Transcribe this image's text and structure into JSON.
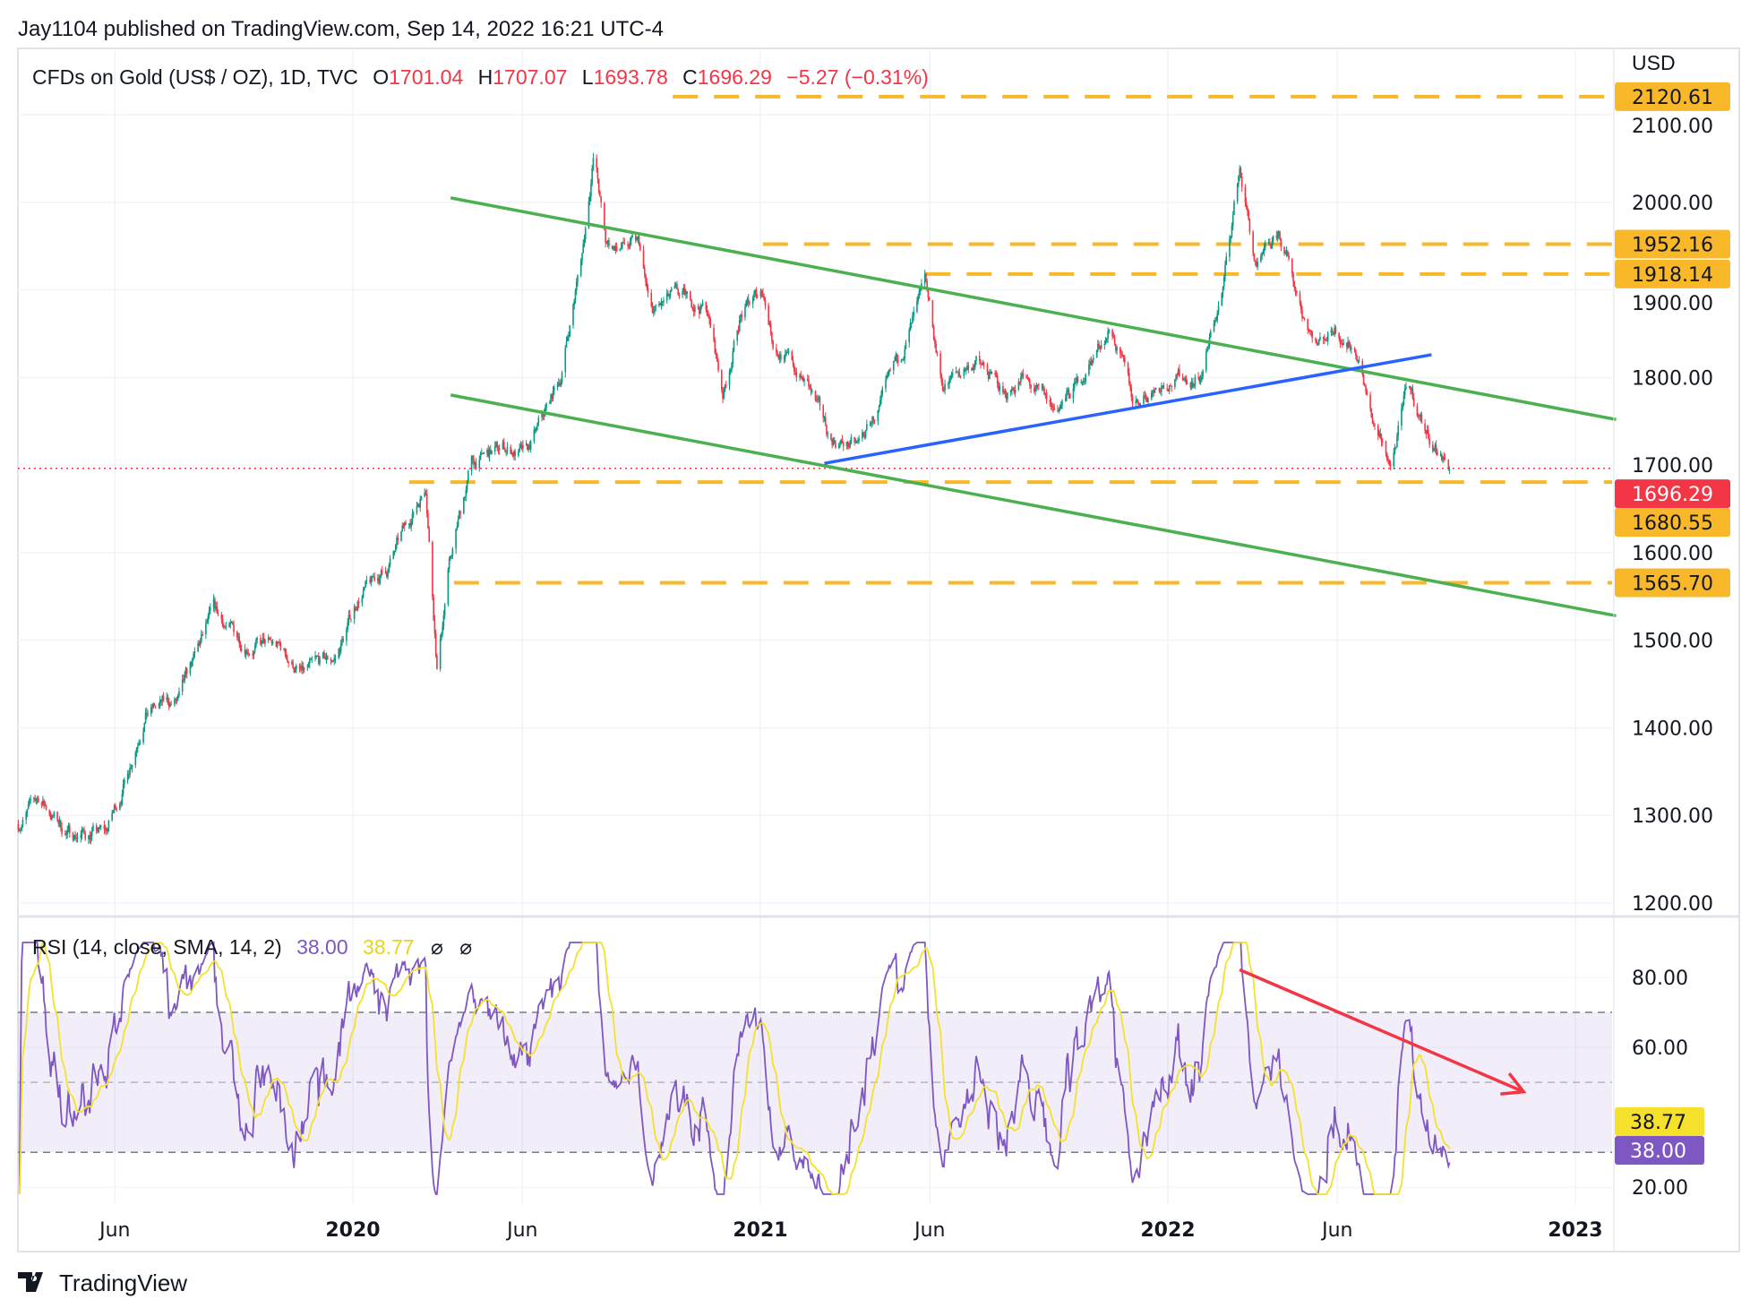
{
  "header": {
    "published": "Jay1104 published on TradingView.com, Sep 14, 2022 16:21 UTC-4"
  },
  "legend": {
    "symbol": "CFDs on Gold (US$ / OZ), 1D, TVC",
    "o_label": "O",
    "o": "1701.04",
    "h_label": "H",
    "h": "1707.07",
    "l_label": "L",
    "l": "1693.78",
    "c_label": "C",
    "c": "1696.29",
    "change": "−5.27 (−0.31%)"
  },
  "rsi_legend": {
    "title": "RSI (14, close, SMA, 14, 2)",
    "rsi": "38.00",
    "sma": "38.77",
    "flag1": "⌀",
    "flag2": "⌀"
  },
  "currency": "USD",
  "footer": {
    "brand": "TradingView"
  },
  "colors": {
    "up": "#089981",
    "down": "#f23645",
    "level": "#f9b829",
    "channel": "#4caf50",
    "trend": "#2962ff",
    "rsi": "#7e57c2",
    "rsi_sma": "#f5e12b",
    "arrow": "#f23645"
  },
  "chart_data": {
    "type": "candlestick",
    "title": "CFDs on Gold (US$ / OZ), 1D, TVC",
    "ylim": [
      1200,
      2130
    ],
    "y_ticks": [
      "2100.00",
      "2000.00",
      "1900.00",
      "1800.00",
      "1700.00",
      "1600.00",
      "1500.00",
      "1400.00",
      "1300.00",
      "1200.00"
    ],
    "x_ticks": [
      {
        "t": 2019.416,
        "label": "Jun",
        "bold": false
      },
      {
        "t": 2020.0,
        "label": "2020",
        "bold": true
      },
      {
        "t": 2020.416,
        "label": "Jun",
        "bold": false
      },
      {
        "t": 2021.0,
        "label": "2021",
        "bold": true
      },
      {
        "t": 2021.416,
        "label": "Jun",
        "bold": false
      },
      {
        "t": 2022.0,
        "label": "2022",
        "bold": true
      },
      {
        "t": 2022.416,
        "label": "Jun",
        "bold": false
      },
      {
        "t": 2023.0,
        "label": "2023",
        "bold": true
      }
    ],
    "price_path_anchors": [
      [
        2019.179,
        1290
      ],
      [
        2019.229,
        1320
      ],
      [
        2019.298,
        1280
      ],
      [
        2019.394,
        1280
      ],
      [
        2019.435,
        1330
      ],
      [
        2019.49,
        1420
      ],
      [
        2019.573,
        1430
      ],
      [
        2019.656,
        1530
      ],
      [
        2019.725,
        1500
      ],
      [
        2019.821,
        1490
      ],
      [
        2019.876,
        1460
      ],
      [
        2019.959,
        1480
      ],
      [
        2020.014,
        1550
      ],
      [
        2020.083,
        1580
      ],
      [
        2020.152,
        1650
      ],
      [
        2020.179,
        1680
      ],
      [
        2020.207,
        1470
      ],
      [
        2020.234,
        1580
      ],
      [
        2020.289,
        1700
      ],
      [
        2020.372,
        1720
      ],
      [
        2020.427,
        1710
      ],
      [
        2020.51,
        1800
      ],
      [
        2020.565,
        1950
      ],
      [
        2020.592,
        2060
      ],
      [
        2020.62,
        1950
      ],
      [
        2020.702,
        1950
      ],
      [
        2020.73,
        1870
      ],
      [
        2020.785,
        1890
      ],
      [
        2020.868,
        1880
      ],
      [
        2020.909,
        1780
      ],
      [
        2020.95,
        1870
      ],
      [
        2021.006,
        1900
      ],
      [
        2021.033,
        1840
      ],
      [
        2021.116,
        1790
      ],
      [
        2021.171,
        1730
      ],
      [
        2021.24,
        1720
      ],
      [
        2021.309,
        1780
      ],
      [
        2021.364,
        1850
      ],
      [
        2021.405,
        1900
      ],
      [
        2021.446,
        1790
      ],
      [
        2021.529,
        1820
      ],
      [
        2021.598,
        1780
      ],
      [
        2021.639,
        1800
      ],
      [
        2021.722,
        1760
      ],
      [
        2021.777,
        1790
      ],
      [
        2021.86,
        1860
      ],
      [
        2021.915,
        1770
      ],
      [
        2021.997,
        1800
      ],
      [
        2022.08,
        1800
      ],
      [
        2022.135,
        1900
      ],
      [
        2022.176,
        2040
      ],
      [
        2022.218,
        1920
      ],
      [
        2022.273,
        1960
      ],
      [
        2022.328,
        1880
      ],
      [
        2022.369,
        1840
      ],
      [
        2022.41,
        1860
      ],
      [
        2022.466,
        1830
      ],
      [
        2022.507,
        1740
      ],
      [
        2022.548,
        1700
      ],
      [
        2022.59,
        1790
      ],
      [
        2022.631,
        1740
      ],
      [
        2022.672,
        1710
      ],
      [
        2022.694,
        1696.29
      ]
    ],
    "last_price": 1696.29,
    "levels": [
      {
        "price": 2120.61,
        "from": 2020.785,
        "label": "2120.61",
        "style": "dashed"
      },
      {
        "price": 1952.16,
        "from": 2021.006,
        "label": "1952.16",
        "style": "dashed"
      },
      {
        "price": 1918.14,
        "from": 2021.405,
        "label": "1918.14",
        "style": "dashed"
      },
      {
        "price": 1680.55,
        "from": 2020.138,
        "label": "1680.55",
        "style": "dashed"
      },
      {
        "price": 1565.7,
        "from": 2020.248,
        "label": "1565.70",
        "style": "dashed"
      }
    ],
    "trendlines": [
      {
        "name": "upper-channel",
        "color": "channel",
        "p1": [
          2020.24,
          2005
        ],
        "p2": [
          2023.1,
          1752
        ]
      },
      {
        "name": "lower-channel",
        "color": "channel",
        "p1": [
          2020.24,
          1780
        ],
        "p2": [
          2023.1,
          1528
        ]
      },
      {
        "name": "support-trend",
        "color": "trend",
        "p1": [
          2021.157,
          1702
        ],
        "p2": [
          2022.647,
          1826
        ]
      }
    ],
    "rsi": {
      "period": 14,
      "sma": 14,
      "ylim": [
        20,
        85
      ],
      "y_ticks": [
        "80.00",
        "60.00",
        "20.00"
      ],
      "bands": [
        70,
        50,
        30
      ],
      "last_rsi": 38.0,
      "last_sma": 38.77,
      "arrow": {
        "p1": [
          2022.176,
          82.2
        ],
        "p2": [
          2022.873,
          47.3
        ]
      }
    }
  }
}
